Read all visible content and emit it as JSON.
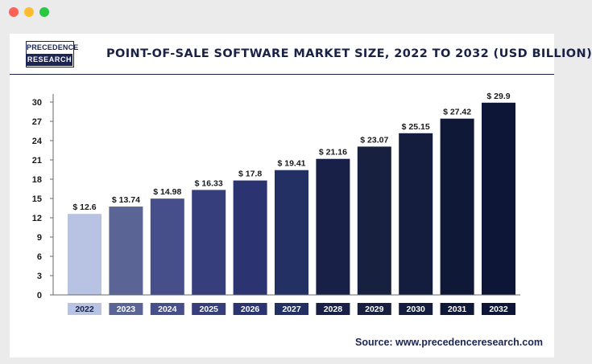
{
  "window": {
    "controls": [
      "close",
      "minimize",
      "maximize"
    ]
  },
  "logo": {
    "line1": "PRECEDENCE",
    "line2": "RESEARCH"
  },
  "header": {
    "title": "POINT-OF-SALE SOFTWARE MARKET SIZE, 2022 TO 2032 (USD BILLION)"
  },
  "source": "Source: www.precedenceresearch.com",
  "chart_data": {
    "type": "bar",
    "title": "POINT-OF-SALE SOFTWARE MARKET SIZE, 2022 TO 2032 (USD BILLION)",
    "xlabel": "",
    "ylabel": "",
    "categories": [
      "2022",
      "2023",
      "2024",
      "2025",
      "2026",
      "2027",
      "2028",
      "2029",
      "2030",
      "2031",
      "2032"
    ],
    "values": [
      12.6,
      13.74,
      14.98,
      16.33,
      17.8,
      19.41,
      21.16,
      23.07,
      25.15,
      27.42,
      29.9
    ],
    "data_labels": [
      "$ 12.6",
      "$ 13.74",
      "$ 14.98",
      "$ 16.33",
      "$ 17.8",
      "$ 19.41",
      "$ 21.16",
      "$ 23.07",
      "$ 25.15",
      "$ 27.42",
      "$ 29.9"
    ],
    "ylim": [
      0,
      30
    ],
    "yticks": [
      0,
      3,
      6,
      9,
      12,
      15,
      18,
      21,
      24,
      27,
      30
    ],
    "grid": false,
    "legend": "none",
    "colors": [
      "#b8c2e2",
      "#5a6495",
      "#474f8a",
      "#363f7b",
      "#2b3371",
      "#233063",
      "#182047",
      "#17213f",
      "#141d3d",
      "#101838",
      "#0e1638"
    ]
  }
}
